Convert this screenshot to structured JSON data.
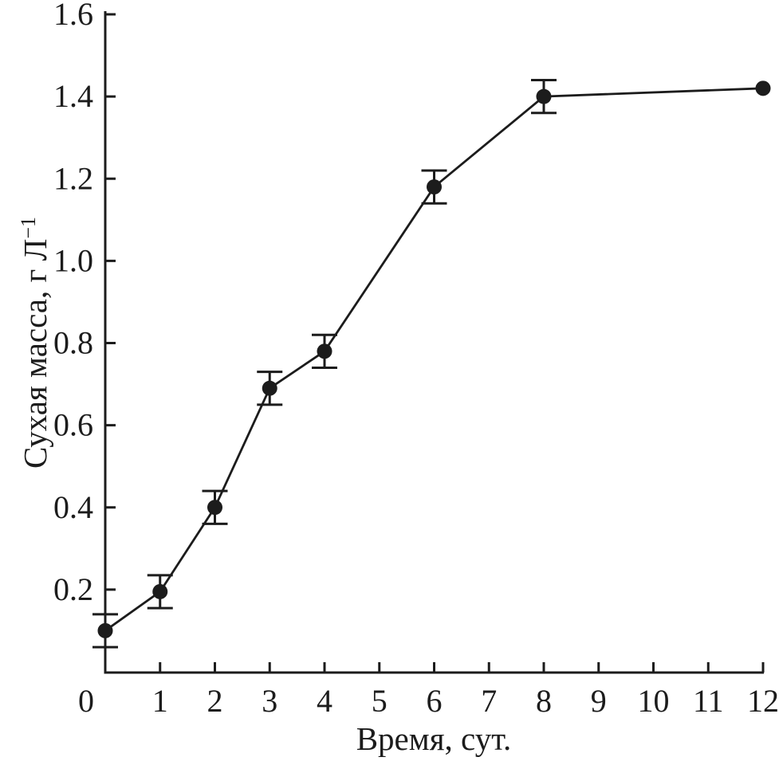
{
  "figure": {
    "background": "#ffffff",
    "ink": "#1c1c1c"
  },
  "chart_data": {
    "type": "line",
    "title": "",
    "xlabel": "Время, сут.",
    "ylabel": "Сухая масса, г Л⁻¹",
    "ylabel_main": "Сухая масса, г Л",
    "ylabel_sup": "−1",
    "xlim": [
      0,
      12
    ],
    "ylim": [
      0,
      1.6
    ],
    "x_ticks": [
      0,
      1,
      2,
      3,
      4,
      5,
      6,
      7,
      8,
      9,
      10,
      11,
      12
    ],
    "x_tick_labels": [
      "0",
      "1",
      "2",
      "3",
      "4",
      "5",
      "6",
      "7",
      "8",
      "9",
      "10",
      "11",
      "12"
    ],
    "y_ticks": [
      0.2,
      0.4,
      0.6,
      0.8,
      1.0,
      1.2,
      1.4,
      1.6
    ],
    "y_tick_labels": [
      "0.2",
      "0.4",
      "0.6",
      "0.8",
      "1.0",
      "1.2",
      "1.4",
      "1.6"
    ],
    "grid": false,
    "legend": null,
    "series": [
      {
        "name": "dry-mass-growth-curve",
        "marker": "filled-circle",
        "color": "#1c1c1c",
        "x": [
          0,
          1,
          2,
          3,
          4,
          6,
          8,
          12
        ],
        "y": [
          0.1,
          0.195,
          0.4,
          0.69,
          0.78,
          1.18,
          1.4,
          1.42
        ],
        "y_err": [
          0.04,
          0.04,
          0.04,
          0.04,
          0.04,
          0.04,
          0.04,
          0
        ]
      }
    ]
  }
}
